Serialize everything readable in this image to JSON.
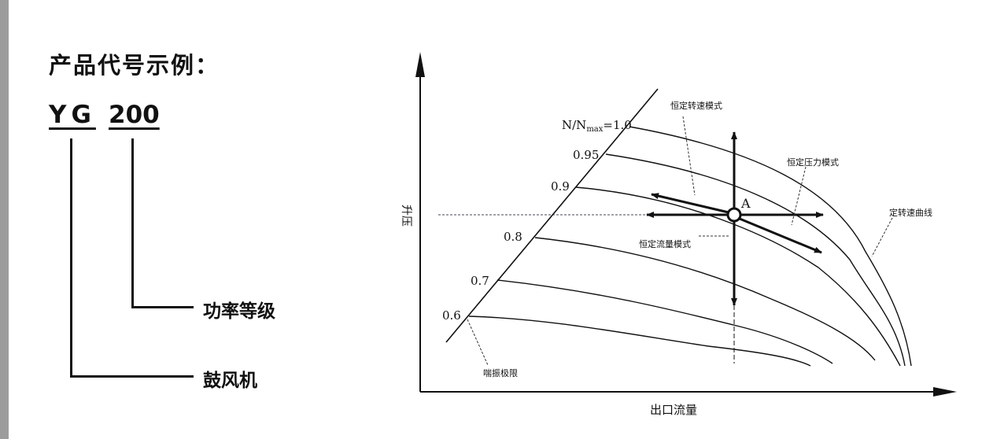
{
  "example": {
    "title": "产品代号示例：",
    "code_prefix": "YG",
    "code_number": "200",
    "number_meaning": "功率等级",
    "prefix_meaning": "鼓风机"
  },
  "chart": {
    "y_axis_label": "升压",
    "x_axis_label": "出口流量",
    "speed_label_prefix": "N/N",
    "speed_label_sub": "max",
    "speed_label_suffix": "=1.0",
    "speed_ratios": [
      "0.95",
      "0.9",
      "0.8",
      "0.7",
      "0.6"
    ],
    "point_label": "A",
    "annotations": {
      "constant_speed_mode": "恒定转速模式",
      "constant_pressure_mode": "恒定压力模式",
      "constant_speed_curve": "定转速曲线",
      "constant_flow_mode": "恒定流量模式",
      "surge_limit": "喘振极限"
    }
  }
}
